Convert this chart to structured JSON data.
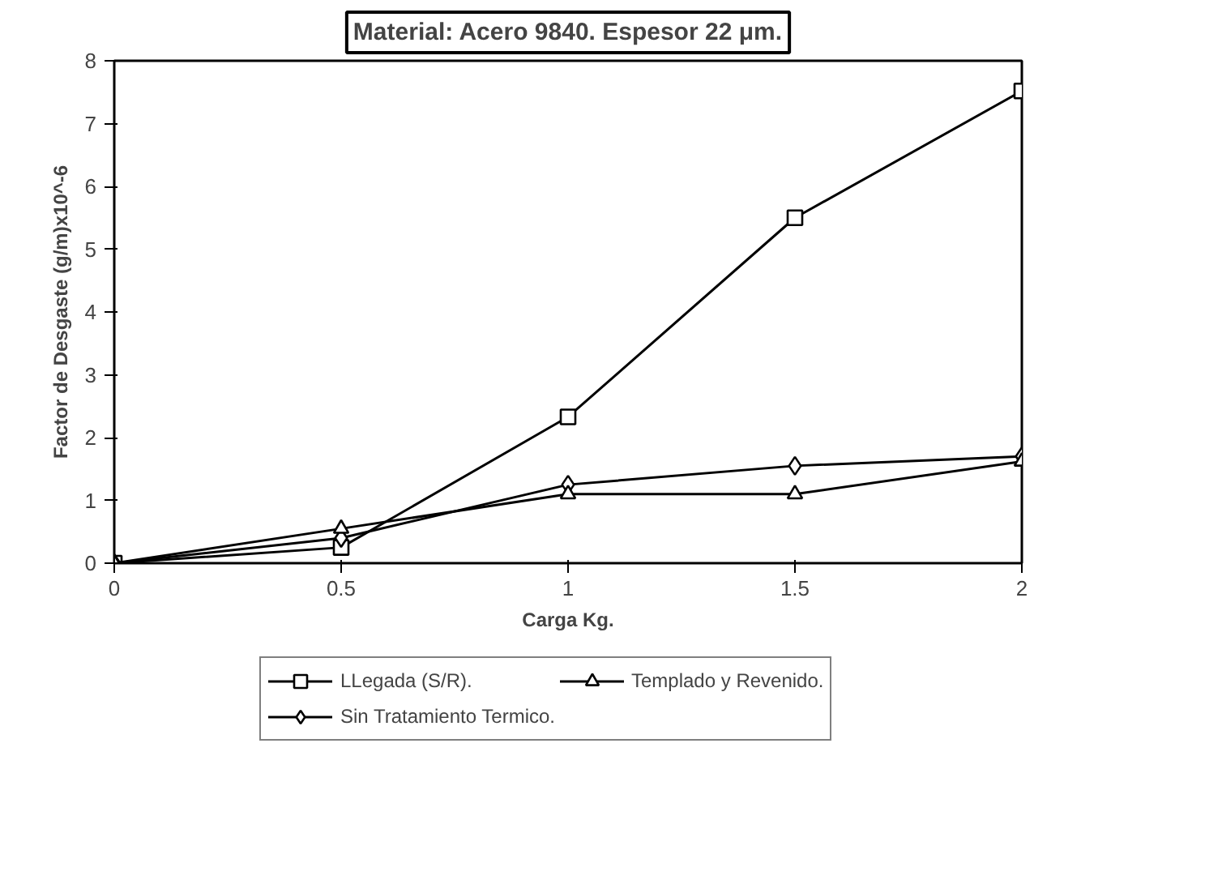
{
  "chart_data": {
    "type": "line",
    "title": "Material: Acero 9840. Espesor 22 μm.",
    "xlabel": "Carga Kg.",
    "ylabel": "Factor de Desgaste (g/m)x10^-6",
    "x": [
      0,
      0.5,
      1,
      1.5,
      2
    ],
    "series": [
      {
        "name": "LLegada (S/R).",
        "color": "#000000",
        "marker": "square",
        "values": [
          0,
          0.25,
          2.33,
          5.5,
          7.52
        ]
      },
      {
        "name": "Sin Tratamiento Termico.",
        "color": "#000000",
        "marker": "diamond",
        "values": [
          0,
          0.4,
          1.25,
          1.55,
          1.7
        ]
      },
      {
        "name": "Templado y Revenido.",
        "color": "#000000",
        "marker": "triangle",
        "values": [
          0,
          0.55,
          1.1,
          1.1,
          1.62
        ]
      }
    ],
    "xlim": [
      0,
      2
    ],
    "ylim": [
      0,
      8
    ],
    "xticks": [
      0,
      0.5,
      1,
      1.5,
      2
    ],
    "yticks": [
      0,
      1,
      2,
      3,
      4,
      5,
      6,
      7,
      8
    ],
    "grid": false,
    "legend": "bottom",
    "line_style": "solid"
  }
}
